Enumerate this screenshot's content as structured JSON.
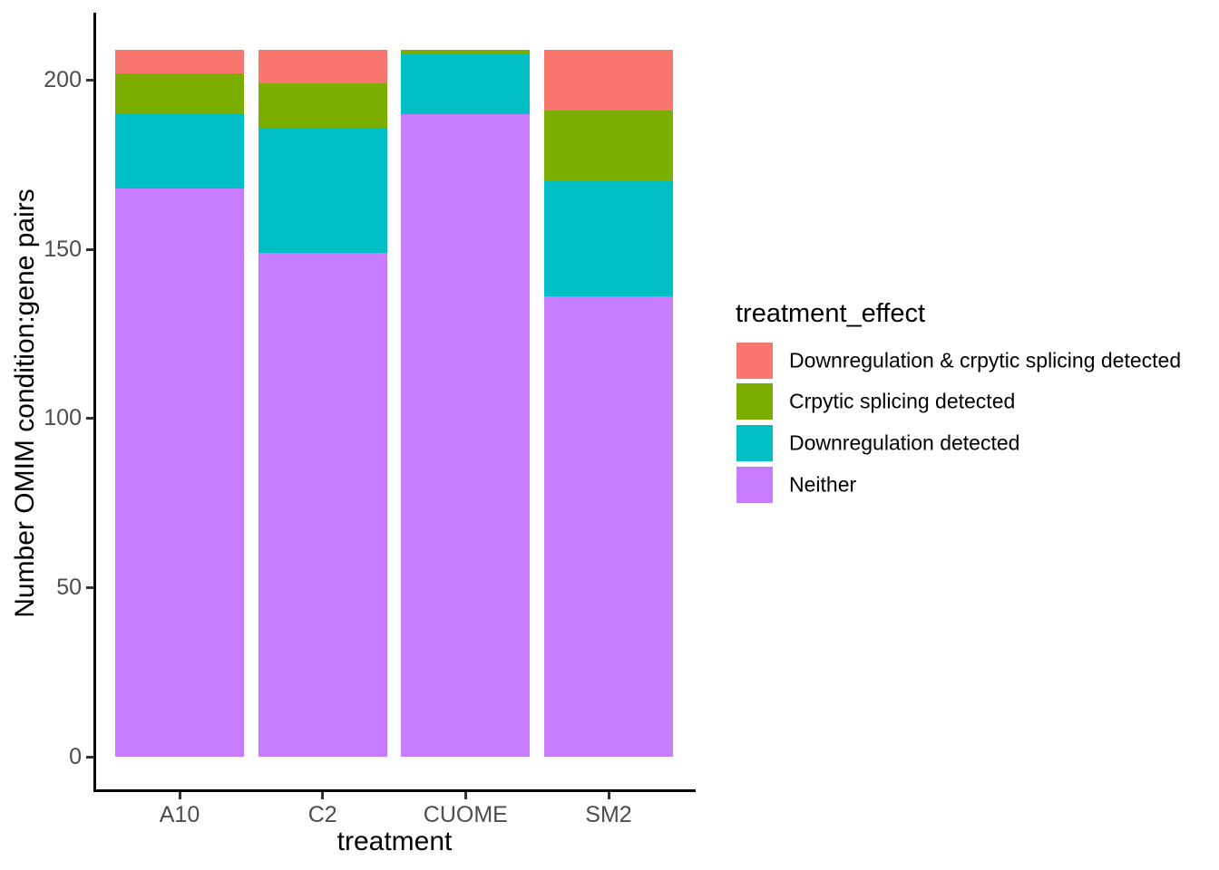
{
  "figure": {
    "background": "#ffffff",
    "axis_line_color": "#000000",
    "tick_color": "#333333",
    "tick_label_color": "#4d4d4d"
  },
  "chart_data": {
    "type": "bar",
    "stacked": true,
    "title": "",
    "xlabel": "treatment",
    "ylabel": "Number OMIM condition:gene pairs",
    "categories": [
      "A10",
      "C2",
      "CUOME",
      "SM2"
    ],
    "series": [
      {
        "name": "Downregulation & crpytic splicing detected",
        "color": "#F8766D",
        "values": [
          7,
          10,
          0,
          18
        ]
      },
      {
        "name": "Crpytic splicing detected",
        "color": "#7CAE00",
        "values": [
          12,
          13,
          1,
          21
        ]
      },
      {
        "name": "Downregulation detected",
        "color": "#00BFC4",
        "values": [
          22,
          37,
          18,
          34
        ]
      },
      {
        "name": "Neither",
        "color": "#C77CFF",
        "values": [
          168,
          149,
          190,
          136
        ]
      }
    ],
    "bar_totals": [
      209,
      209,
      209,
      209
    ],
    "y_ticks": [
      0,
      50,
      100,
      150,
      200
    ],
    "ylim": [
      0,
      219
    ],
    "grid": "off",
    "legend_position": "right"
  },
  "legend": {
    "title": "treatment_effect"
  }
}
